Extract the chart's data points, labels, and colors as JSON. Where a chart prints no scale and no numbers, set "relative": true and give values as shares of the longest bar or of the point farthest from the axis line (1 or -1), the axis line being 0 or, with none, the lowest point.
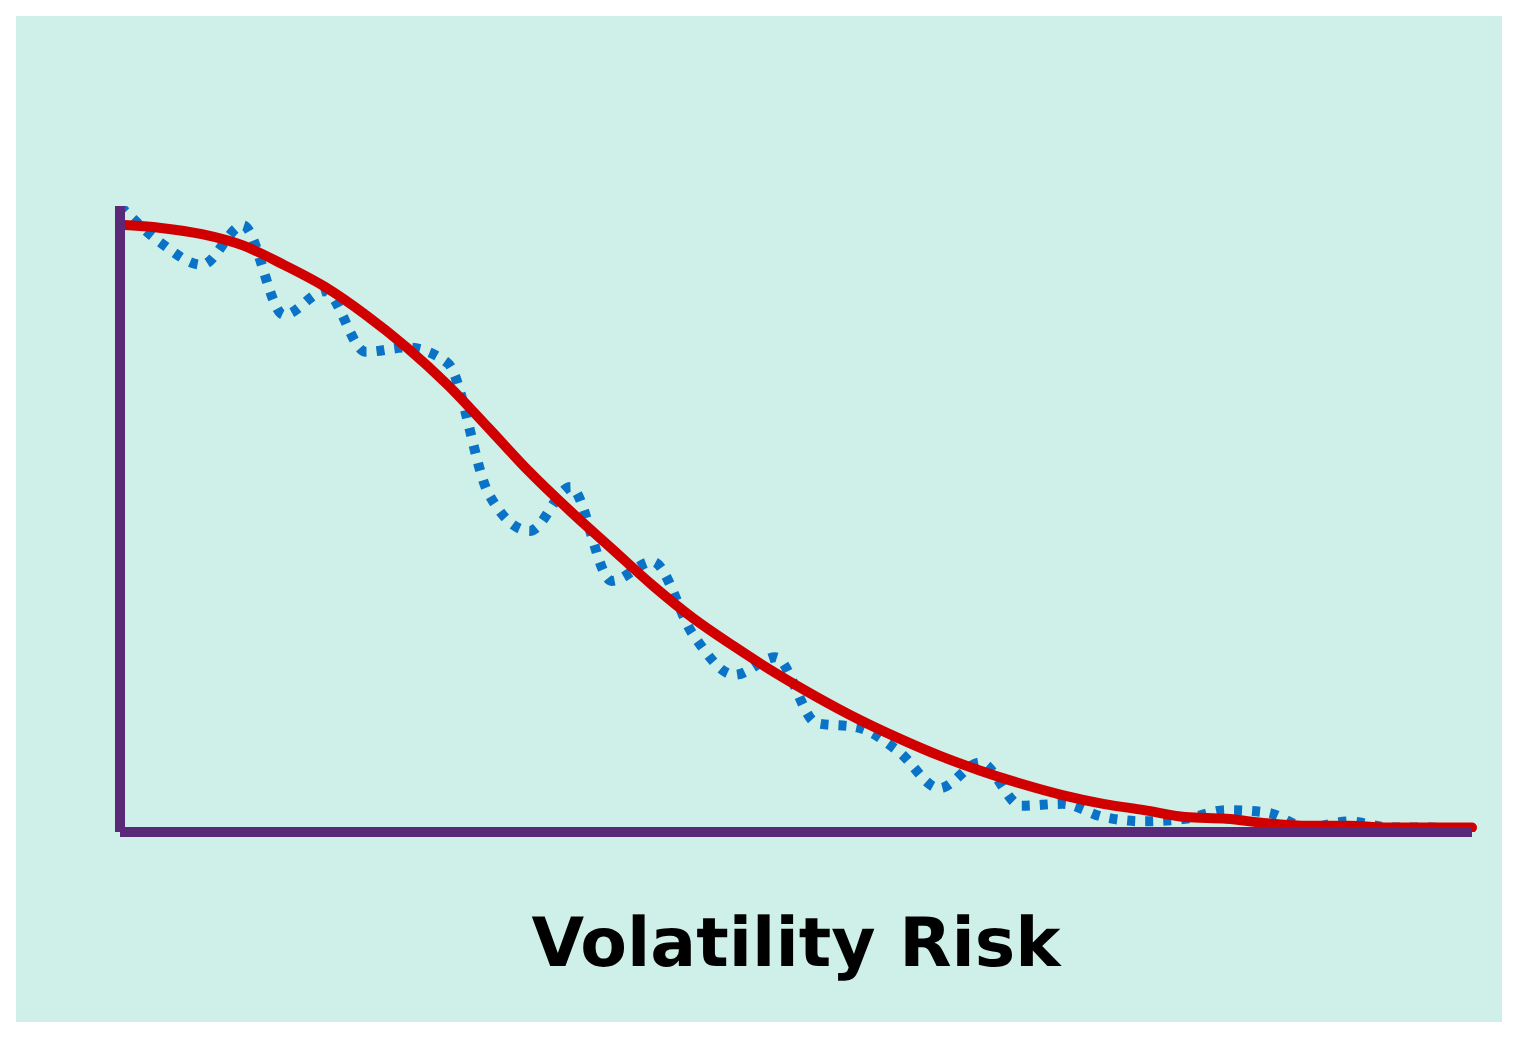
{
  "chart_data": {
    "type": "line",
    "relative": true,
    "xlabel": "Volatility Risk",
    "categories": [
      null,
      null,
      null,
      null,
      null,
      null,
      null,
      null,
      null,
      null,
      null,
      null,
      null,
      null,
      null,
      null,
      null,
      null,
      null,
      null,
      null,
      null,
      null,
      null,
      null,
      null,
      null,
      null,
      null,
      null,
      null,
      null,
      null,
      null
    ],
    "series": [
      {
        "color": "#d10000",
        "line_style": "solid",
        "values": [
          0.97,
          0.965,
          0.955,
          0.937,
          0.906,
          0.871,
          0.826,
          0.774,
          0.714,
          0.645,
          0.575,
          0.512,
          0.453,
          0.394,
          0.341,
          0.296,
          0.254,
          0.216,
          0.181,
          0.15,
          0.122,
          0.098,
          0.077,
          0.059,
          0.045,
          0.035,
          0.024,
          0.021,
          0.014,
          0.01,
          0.01,
          0.007,
          0.007,
          0.007
        ]
      },
      {
        "color": "#0a73c8",
        "line_style": "dotted",
        "values": [
          1.0,
          0.941,
          0.906,
          0.969,
          0.826,
          0.864,
          0.767,
          0.774,
          0.749,
          0.54,
          0.481,
          0.551,
          0.401,
          0.432,
          0.314,
          0.251,
          0.279,
          0.174,
          0.167,
          0.129,
          0.07,
          0.111,
          0.042,
          0.045,
          0.024,
          0.017,
          0.021,
          0.035,
          0.031,
          0.007,
          0.017,
          0.007,
          0.007,
          0
        ]
      }
    ],
    "grid": false,
    "legend": false,
    "marker": "none"
  }
}
